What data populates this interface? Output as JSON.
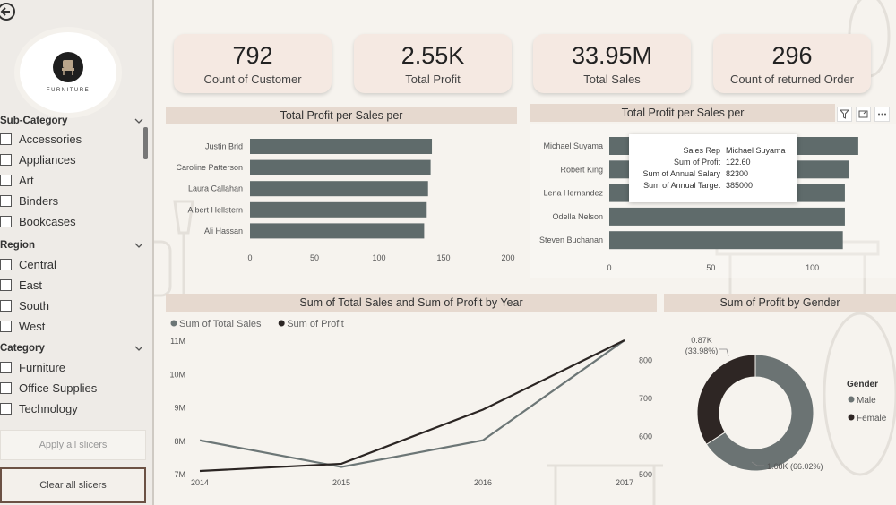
{
  "sidebar": {
    "logo_text": "FURNITURE",
    "slicers": [
      {
        "title": "Sub-Category",
        "items": [
          "Accessories",
          "Appliances",
          "Art",
          "Binders",
          "Bookcases"
        ]
      },
      {
        "title": "Region",
        "items": [
          "Central",
          "East",
          "South",
          "West"
        ]
      },
      {
        "title": "Category",
        "items": [
          "Furniture",
          "Office Supplies",
          "Technology"
        ]
      }
    ],
    "apply_label": "Apply all slicers",
    "clear_label": "Clear all slicers"
  },
  "kpis": [
    {
      "value": "792",
      "label": "Count of Customer"
    },
    {
      "value": "2.55K",
      "label": "Total Profit"
    },
    {
      "value": "33.95M",
      "label": "Total Sales"
    },
    {
      "value": "296",
      "label": "Count of returned Order"
    }
  ],
  "tooltip": {
    "rows": [
      {
        "k": "Sales Rep",
        "v": "Michael Suyama"
      },
      {
        "k": "Sum of Profit",
        "v": "122.60"
      },
      {
        "k": "Sum of Annual Salary",
        "v": "82300"
      },
      {
        "k": "Sum of Annual Target",
        "v": "385000"
      }
    ]
  },
  "colors": {
    "bar": "#5f6b6b",
    "sales_line": "#6c7676",
    "profit_line": "#2b2523",
    "male": "#6b7373",
    "female": "#2e2624"
  },
  "chart_data": [
    {
      "type": "bar",
      "orientation": "horizontal",
      "title": "Total Profit per Sales per",
      "categories": [
        "Justin Brid",
        "Caroline Patterson",
        "Laura Callahan",
        "Albert Hellstern",
        "Ali Hassan"
      ],
      "values": [
        141,
        140,
        138,
        137,
        135
      ],
      "xticks": [
        0,
        50,
        100,
        150,
        200
      ],
      "xlim": [
        0,
        200
      ]
    },
    {
      "type": "bar",
      "orientation": "horizontal",
      "title": "Total Profit per Sales per",
      "categories": [
        "Michael Suyama",
        "Robert King",
        "Lena Hernandez",
        "Odella Nelson",
        "Steven Buchanan"
      ],
      "values": [
        122.6,
        118,
        116,
        116,
        115
      ],
      "xticks": [
        0,
        50,
        100
      ],
      "xlim": [
        0,
        120
      ]
    },
    {
      "type": "line",
      "title": "Sum of Total Sales and Sum of Profit by Year",
      "x": [
        "2014",
        "2015",
        "2016",
        "2017"
      ],
      "series": [
        {
          "name": "Sum of Total Sales",
          "axis": "left",
          "values": [
            8000000,
            7200000,
            8000000,
            11000000
          ]
        },
        {
          "name": "Sum of Profit",
          "axis": "right",
          "values": [
            507,
            526,
            668,
            850
          ]
        }
      ],
      "y_left_ticks": [
        "7M",
        "8M",
        "9M",
        "10M",
        "11M"
      ],
      "y_left_lim": [
        7000000,
        11000000
      ],
      "y_right_ticks": [
        "500",
        "600",
        "700",
        "800"
      ],
      "y_right_lim": [
        500,
        850
      ]
    },
    {
      "type": "pie",
      "donut": true,
      "title": "Sum of Profit by Gender",
      "legend_title": "Gender",
      "slices": [
        {
          "name": "Male",
          "value": 1.68,
          "label": "1.68K (66.02%)"
        },
        {
          "name": "Female",
          "value": 0.87,
          "label": "0.87K (33.98%)"
        }
      ]
    }
  ]
}
